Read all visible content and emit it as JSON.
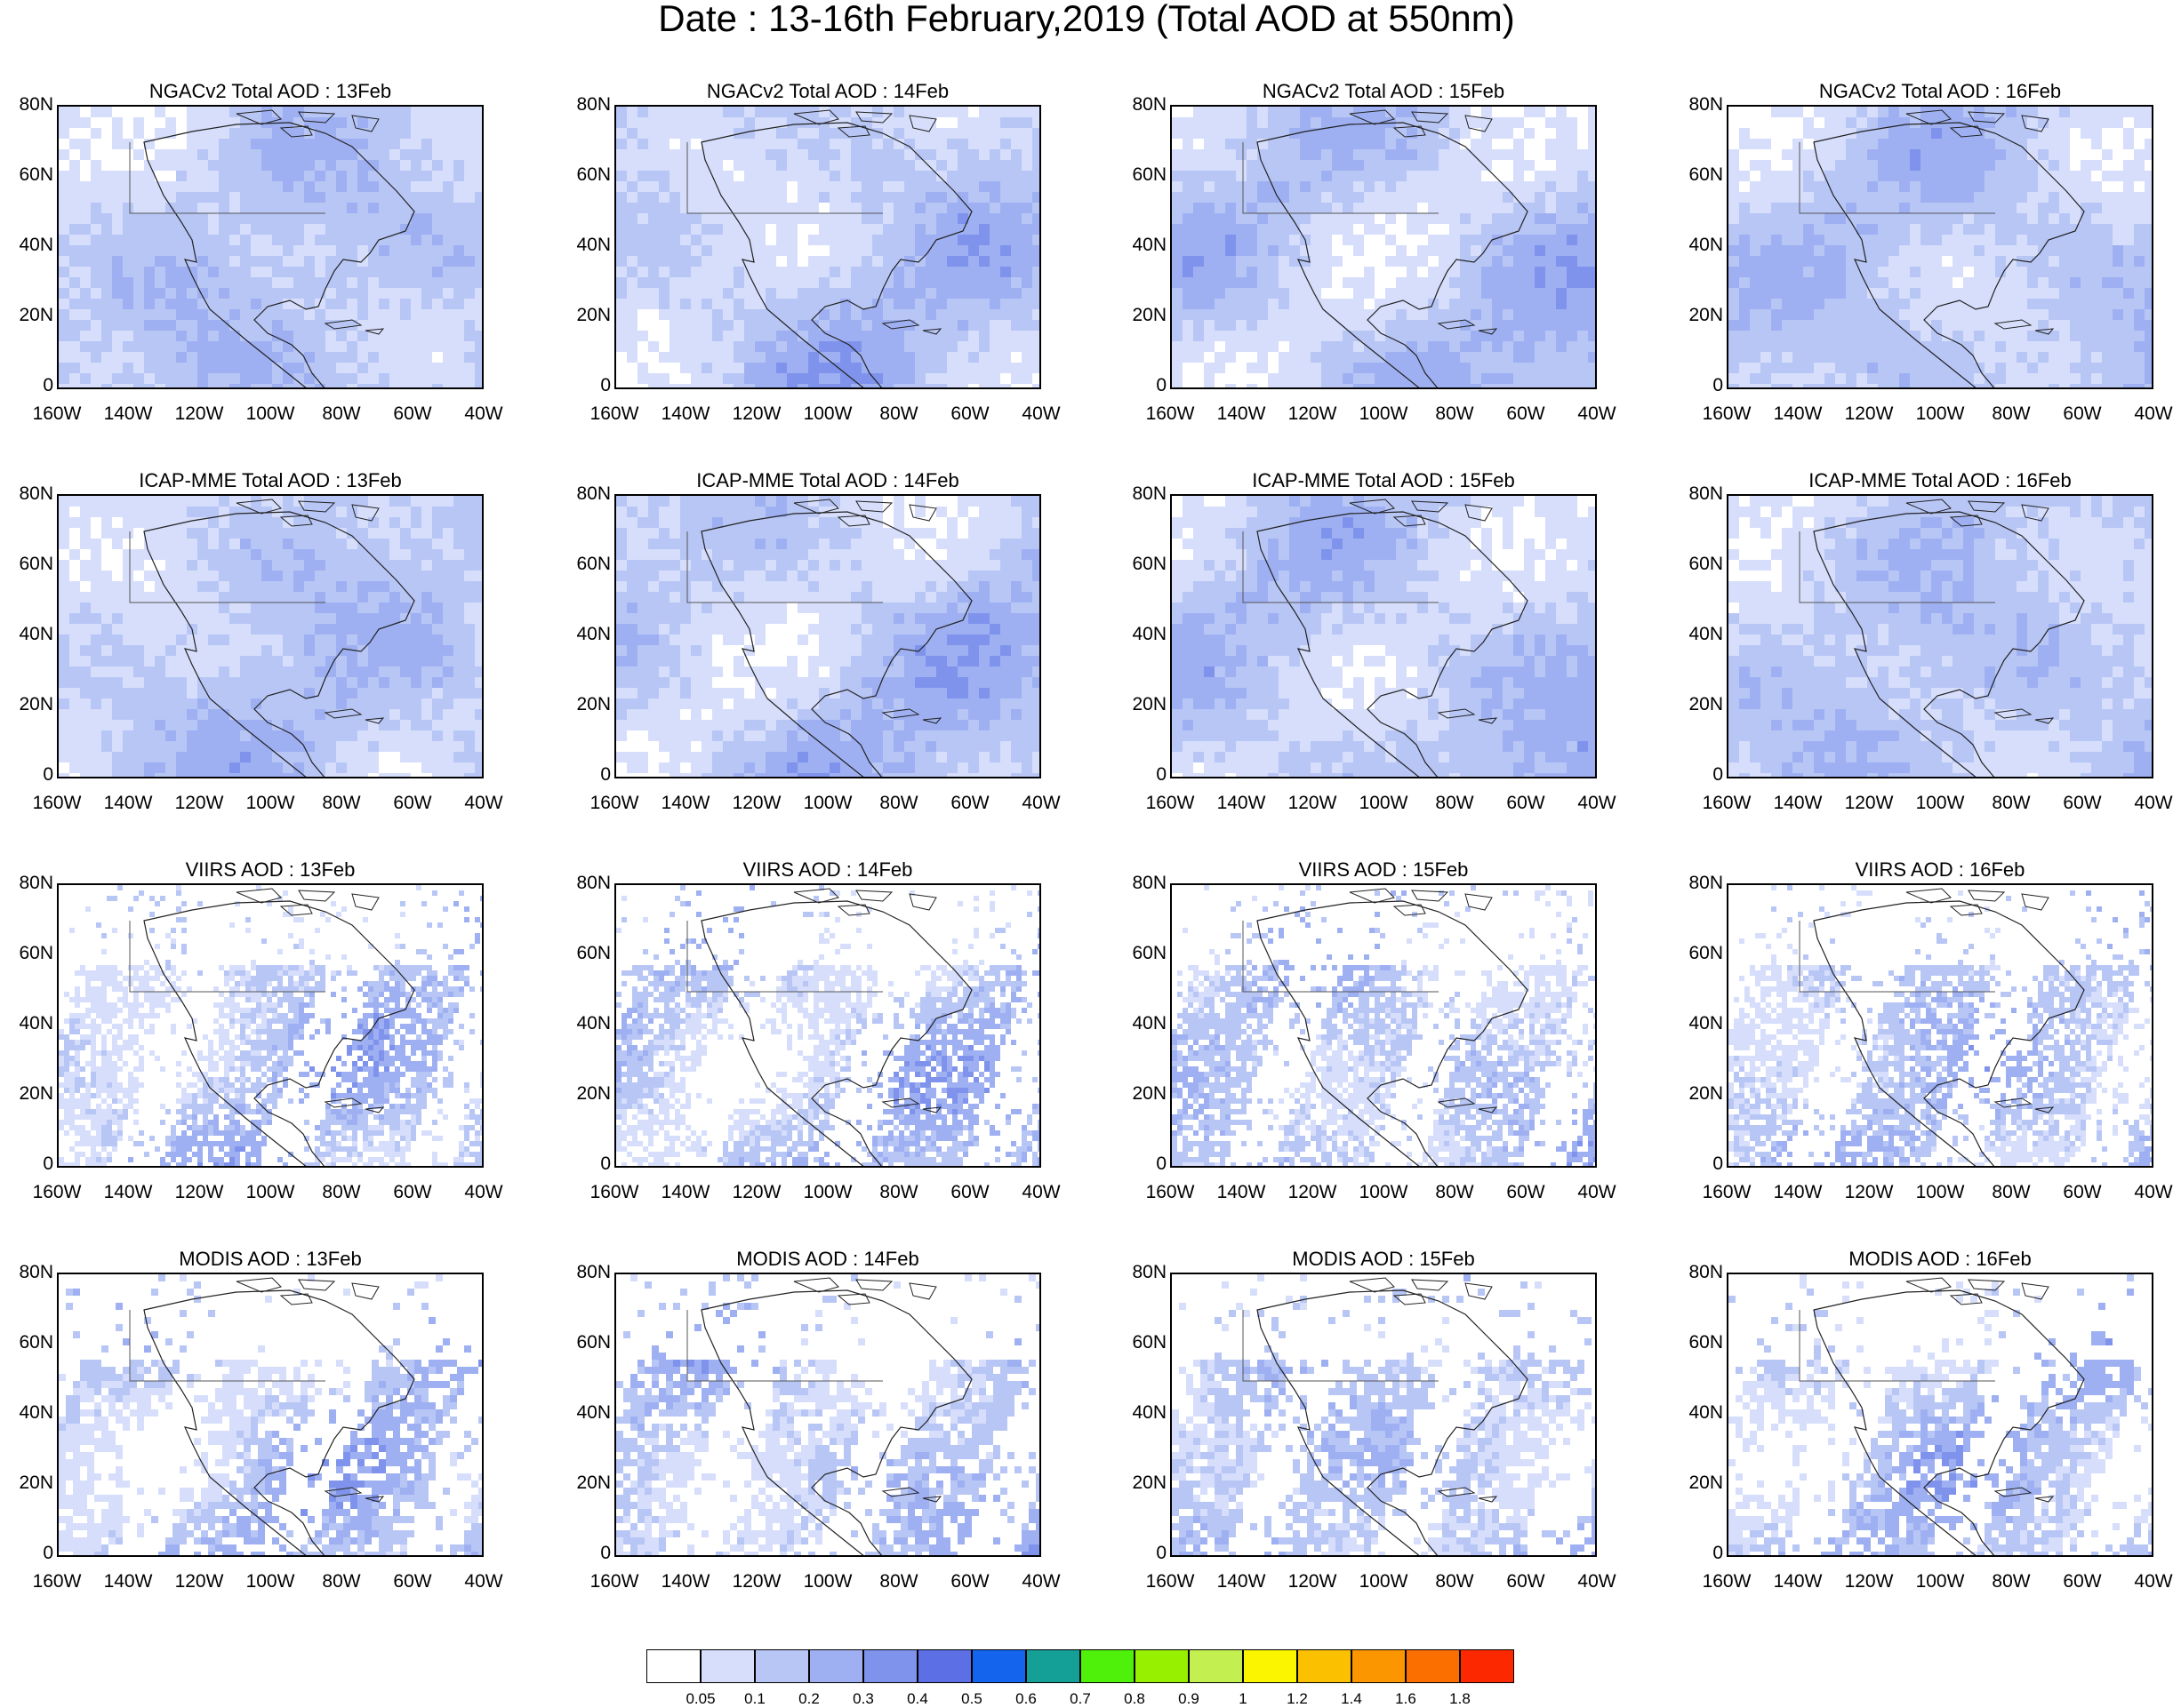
{
  "title": "Date : 13-16th February,2019 (Total AOD at 550nm)",
  "lat_labels": [
    "80N",
    "60N",
    "40N",
    "20N",
    "0"
  ],
  "lon_labels": [
    "160W",
    "140W",
    "120W",
    "100W",
    "80W",
    "60W",
    "40W"
  ],
  "panels": [
    {
      "title": "NGACv2 Total AOD : 13Feb",
      "row": 0,
      "col": 0,
      "icon": "aod-map"
    },
    {
      "title": "NGACv2 Total AOD : 14Feb",
      "row": 0,
      "col": 1,
      "icon": "aod-map"
    },
    {
      "title": "NGACv2 Total AOD : 15Feb",
      "row": 0,
      "col": 2,
      "icon": "aod-map"
    },
    {
      "title": "NGACv2 Total AOD : 16Feb",
      "row": 0,
      "col": 3,
      "icon": "aod-map"
    },
    {
      "title": "ICAP-MME Total AOD : 13Feb",
      "row": 1,
      "col": 0,
      "icon": "aod-map"
    },
    {
      "title": "ICAP-MME Total AOD : 14Feb",
      "row": 1,
      "col": 1,
      "icon": "aod-map"
    },
    {
      "title": "ICAP-MME Total AOD : 15Feb",
      "row": 1,
      "col": 2,
      "icon": "aod-map"
    },
    {
      "title": "ICAP-MME Total AOD : 16Feb",
      "row": 1,
      "col": 3,
      "icon": "aod-map"
    },
    {
      "title": "VIIRS AOD : 13Feb",
      "row": 2,
      "col": 0,
      "icon": "aod-map"
    },
    {
      "title": "VIIRS AOD : 14Feb",
      "row": 2,
      "col": 1,
      "icon": "aod-map"
    },
    {
      "title": "VIIRS AOD : 15Feb",
      "row": 2,
      "col": 2,
      "icon": "aod-map"
    },
    {
      "title": "VIIRS AOD : 16Feb",
      "row": 2,
      "col": 3,
      "icon": "aod-map"
    },
    {
      "title": "MODIS AOD : 13Feb",
      "row": 3,
      "col": 0,
      "icon": "aod-map"
    },
    {
      "title": "MODIS AOD : 14Feb",
      "row": 3,
      "col": 1,
      "icon": "aod-map"
    },
    {
      "title": "MODIS AOD : 15Feb",
      "row": 3,
      "col": 2,
      "icon": "aod-map"
    },
    {
      "title": "MODIS AOD : 16Feb",
      "row": 3,
      "col": 3,
      "icon": "aod-map"
    }
  ],
  "colorbar": {
    "labels": [
      "0.05",
      "0.1",
      "0.2",
      "0.3",
      "0.4",
      "0.5",
      "0.6",
      "0.7",
      "0.8",
      "0.9",
      "1",
      "1.2",
      "1.4",
      "1.6",
      "1.8"
    ],
    "colors": [
      "#ffffff",
      "#d6defb",
      "#b8c6f6",
      "#9eb0f2",
      "#7f93ec",
      "#5d6fe4",
      "#1464ee",
      "#14a096",
      "#4ff10a",
      "#96f000",
      "#c3f050",
      "#fbf500",
      "#fbc000",
      "#fb9600",
      "#fb6e00",
      "#fb2800"
    ]
  }
}
